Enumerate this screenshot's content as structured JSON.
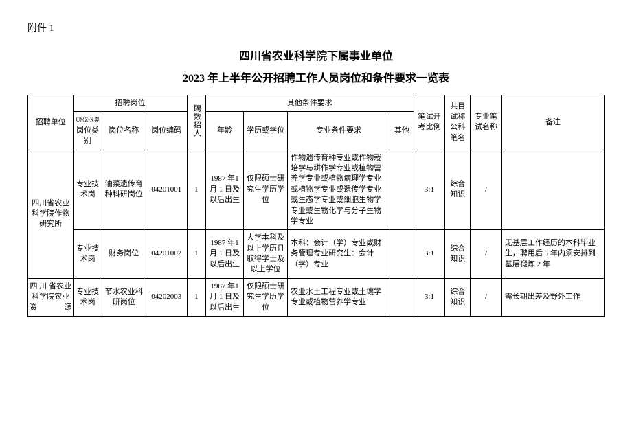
{
  "attachment_label": "附件 1",
  "title_line1": "四川省农业科学院下属事业单位",
  "title_line2": "2023 年上半年公开招聘工作人员岗位和条件要求一览表",
  "headers": {
    "unit": "招聘单位",
    "position_group": "招聘岗位",
    "category": "岗位类别",
    "category_tiny_prefix": "UMZ-X奥",
    "position_name": "岗位名称",
    "position_code": "岗位编码",
    "num": "聘数招人",
    "other_req_group": "其他条件要求",
    "age": "年龄",
    "edu": "学历或学位",
    "major": "专业条件要求",
    "other": "其他",
    "ratio": "笔试开考比例",
    "subject": "共目试称公科笔名",
    "exam": "专业笔试名称",
    "remark": "备注"
  },
  "rows": [
    {
      "unit": "四川省农业科学院作物研究所",
      "unit_rowspan": 2,
      "category": "专业技术岗",
      "position_name": "油菜遗传育种科研岗位",
      "position_code": "04201001",
      "num": "1",
      "age": "1987 年1 月 1 日及以后出生",
      "edu": "仅限硕士研究生学历学位",
      "major": "作物遗传育种专业或作物栽培学与耕作学专业或植物营养学专业或植物病理学专业或植物学专业或遗传学专业或生态学专业或细胞生物学专业或生物化学与分子生物学专业",
      "other": "",
      "ratio": "3:1",
      "subject": "综合知识",
      "exam": "/",
      "remark": ""
    },
    {
      "category": "专业技术岗",
      "position_name": "财务岗位",
      "position_code": "04201002",
      "num": "1",
      "age": "1987 年1 月 1 日及以后出生",
      "edu": "大学本科及以上学历且取得学士及以上学位",
      "major": "本科：会计（学）专业或财务管理专业研究生：会计（学）专业",
      "other": "",
      "ratio": "3:1",
      "subject": "综合知识",
      "exam": "/",
      "remark": "无基层工作经历的本科毕业生，聘用后 5 年内须安排到基层锻炼 2 年"
    },
    {
      "unit": "四 川 省农业科学院农业资源",
      "unit_rowspan": 1,
      "category": "专业技术岗",
      "position_name": "节水农业科研岗位",
      "position_code": "04202003",
      "num": "1",
      "age": "1987 年1 月 1 日及以后出生",
      "edu": "仅限硕士研究生学历学位",
      "major": "农业水土工程专业或土壤学专业或植物营养学专业",
      "other": "",
      "ratio": "3:1",
      "subject": "综合知识",
      "exam": "/",
      "remark": "需长期出差及野外工作"
    }
  ]
}
